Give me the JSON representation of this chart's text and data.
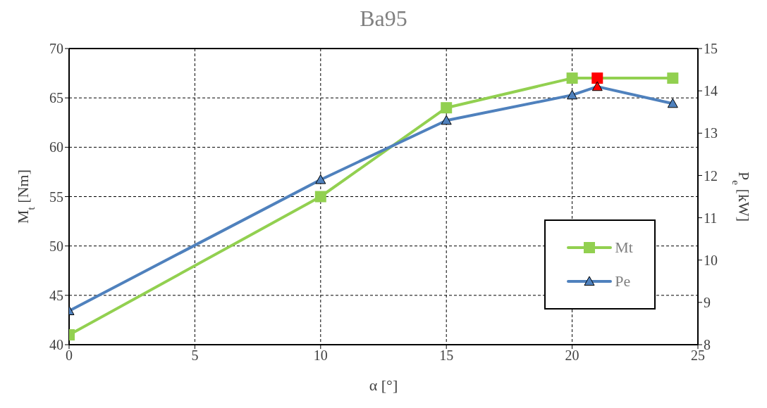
{
  "chart_data": {
    "type": "line",
    "title": "Ba95",
    "xlabel": "α [°]",
    "ylabel": "M$_{t}$ [Nm]",
    "y2label": "P$_{e}$ [kW]",
    "x": [
      0,
      10,
      15,
      20,
      21,
      24
    ],
    "series": [
      {
        "name": "Mt",
        "color": "#92d050",
        "marker": "square",
        "values": [
          41,
          55,
          64,
          67,
          67,
          67
        ],
        "colors": [
          "#92d050",
          "#92d050",
          "#92d050",
          "#92d050",
          "#ff0000",
          "#92d050"
        ]
      },
      {
        "name": "Pe",
        "color": "#4f81bd",
        "marker": "triangle",
        "axis": "y2",
        "values": [
          8.8,
          11.9,
          13.3,
          13.9,
          14.1,
          13.7
        ],
        "colors": [
          "#4f81bd",
          "#4f81bd",
          "#4f81bd",
          "#4f81bd",
          "#ff0000",
          "#4f81bd"
        ]
      }
    ],
    "xlim": [
      0,
      25
    ],
    "xticks": [
      0,
      5,
      10,
      15,
      20,
      25
    ],
    "ylim": [
      40,
      70
    ],
    "yticks": [
      40,
      45,
      50,
      55,
      60,
      65,
      70
    ],
    "y2lim": [
      8,
      15
    ],
    "y2ticks": [
      8,
      9,
      10,
      11,
      12,
      13,
      14,
      15
    ],
    "grid": true,
    "legend": "bottom right",
    "line_style": "solid"
  }
}
